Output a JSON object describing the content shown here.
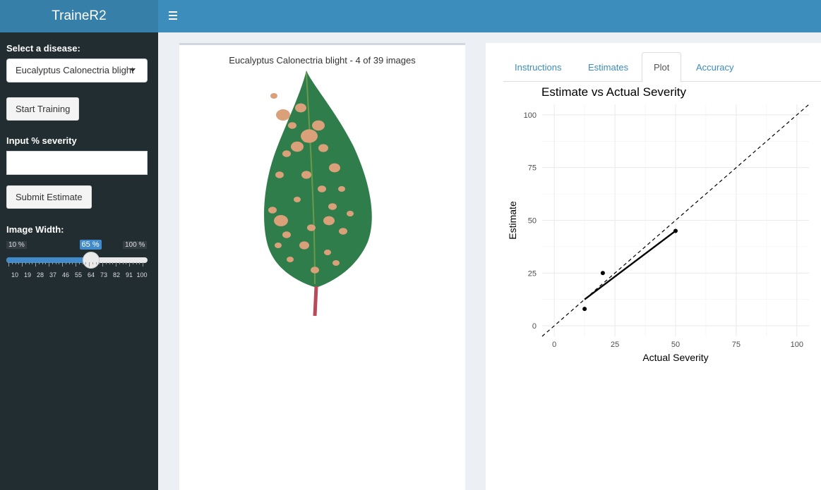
{
  "header": {
    "brand": "TraineR2",
    "menu_icon": "hamburger-icon"
  },
  "sidebar": {
    "disease_label": "Select a disease:",
    "disease_value": "Eucalyptus Calonectria blight",
    "start_button": "Start Training",
    "severity_label": "Input % severity",
    "severity_value": "",
    "submit_button": "Submit Estimate",
    "width_label": "Image Width:",
    "slider": {
      "min_label": "10 %",
      "max_label": "100 %",
      "value_label": "65 %",
      "min": 10,
      "max": 100,
      "value": 65,
      "tick_labels": [
        "10",
        "19",
        "28",
        "37",
        "46",
        "55",
        "64",
        "73",
        "82",
        "91",
        "100"
      ]
    }
  },
  "image_panel": {
    "title": "Eucalyptus Calonectria blight - 4 of 39 images",
    "leaf_color": "#2f7d4a",
    "lesion_color": "#d9a07a"
  },
  "tabs": [
    {
      "label": "Instructions",
      "active": false
    },
    {
      "label": "Estimates",
      "active": false
    },
    {
      "label": "Plot",
      "active": true
    },
    {
      "label": "Accuracy",
      "active": false
    }
  ],
  "chart_data": {
    "type": "scatter",
    "title": "Estimate vs Actual Severity",
    "xlabel": "Actual Severity",
    "ylabel": "Estimate",
    "xlim": [
      -5,
      105
    ],
    "ylim": [
      -5,
      105
    ],
    "x_ticks": [
      0,
      25,
      50,
      75,
      100
    ],
    "y_ticks": [
      0,
      25,
      50,
      75,
      100
    ],
    "grid": true,
    "points": [
      {
        "x": 12.5,
        "y": 8
      },
      {
        "x": 20,
        "y": 25
      },
      {
        "x": 50,
        "y": 45
      }
    ],
    "fit_line": {
      "x1": 12.5,
      "y1": 12.5,
      "x2": 50,
      "y2": 45
    },
    "reference_line": {
      "slope": 1,
      "intercept": 0,
      "style": "dashed"
    }
  }
}
